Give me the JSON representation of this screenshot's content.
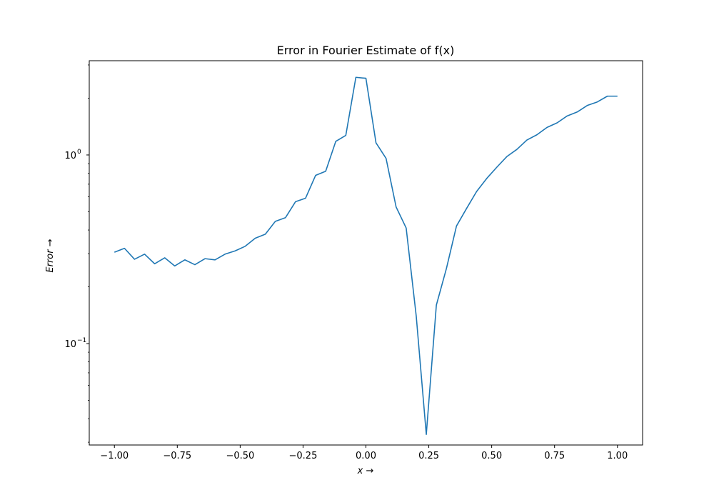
{
  "chart_data": {
    "type": "line",
    "title": "Error in Fourier Estimate of f(x)",
    "xlabel": "x →",
    "ylabel": "Error →",
    "xlim": [
      -1.1,
      1.1
    ],
    "ylim": [
      0.029,
      3.16
    ],
    "y_scale": "log",
    "grid": false,
    "legend": "none",
    "x_ticks": [
      -1.0,
      -0.75,
      -0.5,
      -0.25,
      0.0,
      0.25,
      0.5,
      0.75,
      1.0
    ],
    "x_tick_labels": [
      "−1.00",
      "−0.75",
      "−0.50",
      "−0.25",
      "0.00",
      "0.25",
      "0.50",
      "0.75",
      "1.00"
    ],
    "y_major_ticks": [
      0.1,
      1.0
    ],
    "y_tick_labels": [
      {
        "base": "10",
        "exp": "−1",
        "value": 0.1
      },
      {
        "base": "10",
        "exp": "0",
        "value": 1.0
      }
    ],
    "y_minor_ticks": [
      0.03,
      0.04,
      0.05,
      0.06,
      0.07,
      0.08,
      0.09,
      0.2,
      0.3,
      0.4,
      0.5,
      0.6,
      0.7,
      0.8,
      0.9,
      2.0,
      3.0
    ],
    "series": [
      {
        "color": "#1f77b4",
        "x": [
          -1.0,
          -0.96,
          -0.92,
          -0.88,
          -0.84,
          -0.8,
          -0.76,
          -0.72,
          -0.68,
          -0.64,
          -0.6,
          -0.56,
          -0.52,
          -0.48,
          -0.44,
          -0.4,
          -0.36,
          -0.32,
          -0.28,
          -0.24,
          -0.2,
          -0.16,
          -0.12,
          -0.08,
          -0.04,
          0.0,
          0.04,
          0.08,
          0.12,
          0.16,
          0.2,
          0.24,
          0.28,
          0.32,
          0.36,
          0.4,
          0.44,
          0.48,
          0.52,
          0.56,
          0.6,
          0.64,
          0.68,
          0.72,
          0.76,
          0.8,
          0.84,
          0.88,
          0.92,
          0.96,
          1.0
        ],
        "y": [
          0.305,
          0.32,
          0.28,
          0.298,
          0.265,
          0.285,
          0.258,
          0.278,
          0.262,
          0.282,
          0.278,
          0.298,
          0.31,
          0.328,
          0.362,
          0.38,
          0.445,
          0.465,
          0.565,
          0.59,
          0.78,
          0.82,
          1.18,
          1.27,
          2.58,
          2.55,
          1.16,
          0.96,
          0.53,
          0.41,
          0.14,
          0.033,
          0.16,
          0.25,
          0.42,
          0.52,
          0.64,
          0.75,
          0.86,
          0.98,
          1.07,
          1.2,
          1.28,
          1.4,
          1.48,
          1.61,
          1.69,
          1.83,
          1.91,
          2.05,
          2.05
        ]
      }
    ]
  }
}
